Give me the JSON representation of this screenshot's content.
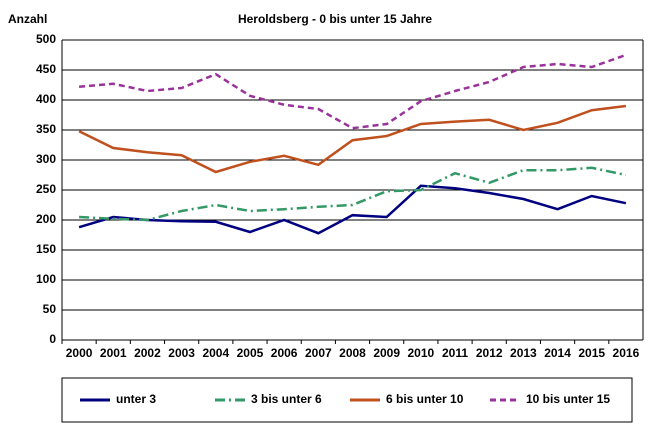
{
  "chart_data": {
    "type": "line",
    "title": "Heroldsberg  - 0 bis unter 15 Jahre",
    "y_label": "Anzahl",
    "categories": [
      "2000",
      "2001",
      "2002",
      "2003",
      "2004",
      "2005",
      "2006",
      "2007",
      "2008",
      "2009",
      "2010",
      "2011",
      "2012",
      "2013",
      "2014",
      "2015",
      "2016"
    ],
    "series": [
      {
        "name": "unter 3",
        "color": "#000080",
        "style": "solid",
        "values": [
          188,
          205,
          200,
          198,
          197,
          180,
          200,
          178,
          208,
          205,
          257,
          253,
          245,
          235,
          218,
          240,
          228
        ]
      },
      {
        "name": "3 bis unter 6",
        "color": "#339966",
        "style": "dashdot",
        "values": [
          205,
          202,
          200,
          215,
          225,
          215,
          218,
          222,
          225,
          248,
          250,
          278,
          262,
          283,
          283,
          287,
          275
        ]
      },
      {
        "name": "6 bis unter 10",
        "color": "#c0501e",
        "style": "solid",
        "values": [
          348,
          320,
          313,
          308,
          280,
          297,
          307,
          292,
          333,
          340,
          360,
          364,
          367,
          350,
          362,
          383,
          390
        ]
      },
      {
        "name": "10 bis unter 15",
        "color": "#993399",
        "style": "dash",
        "values": [
          422,
          427,
          415,
          420,
          443,
          407,
          392,
          385,
          353,
          360,
          398,
          415,
          430,
          455,
          460,
          455,
          475
        ]
      }
    ],
    "ylim": [
      0,
      500
    ],
    "yticks": [
      0,
      50,
      100,
      150,
      200,
      250,
      300,
      350,
      400,
      450,
      500
    ],
    "grid": true,
    "legend": "bottom"
  }
}
